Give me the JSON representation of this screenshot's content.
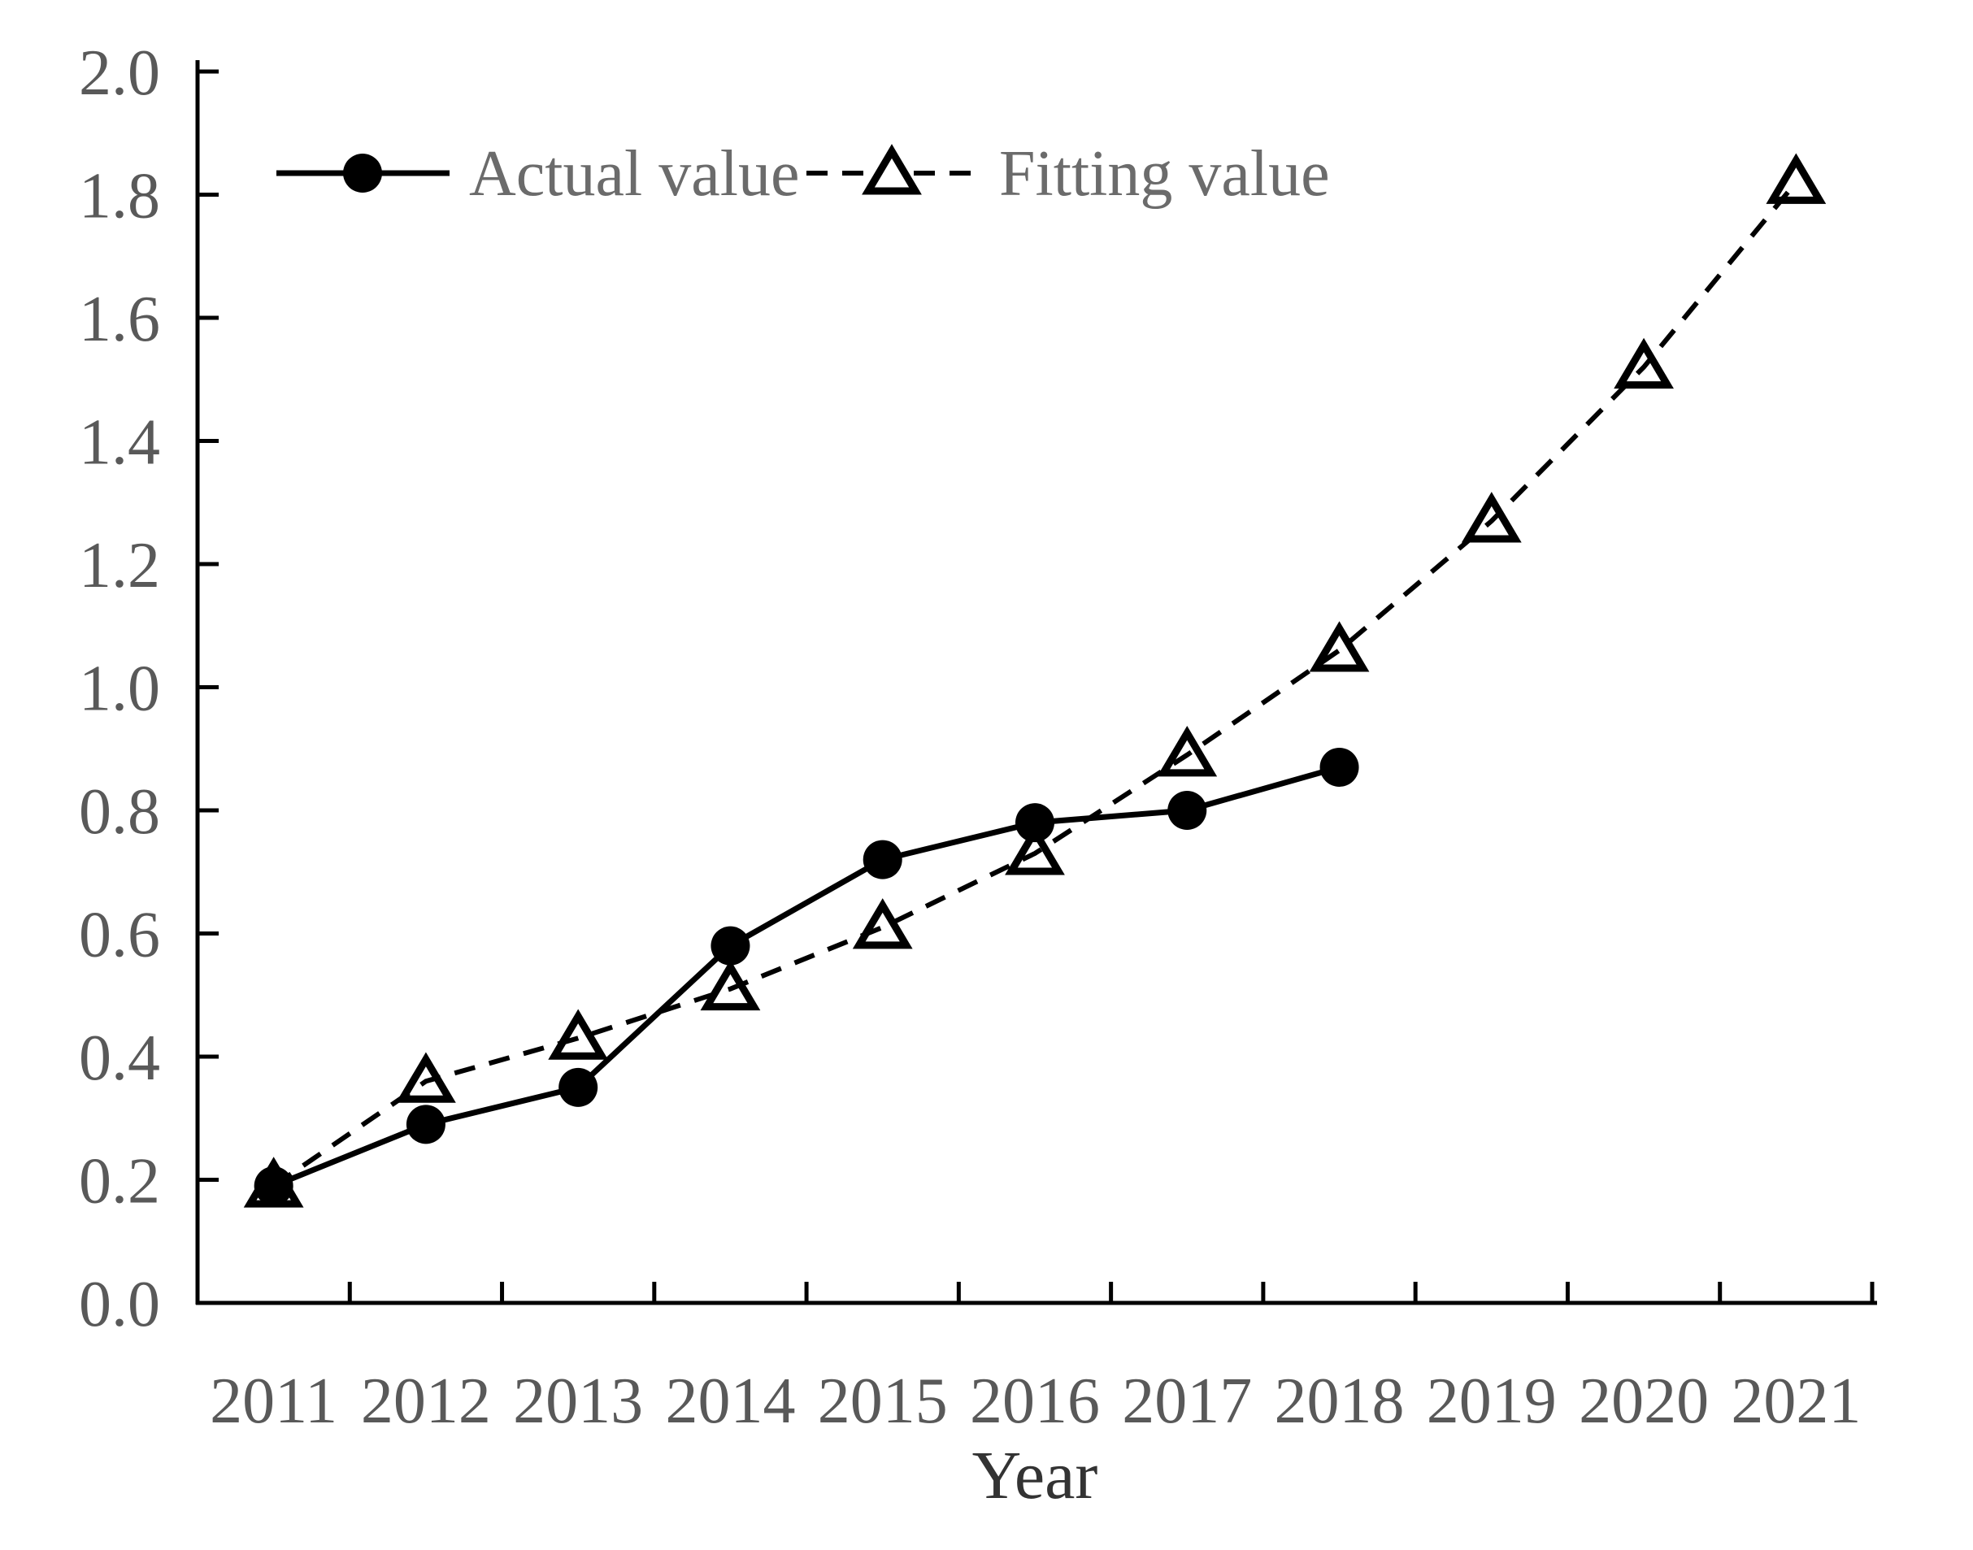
{
  "chart_data": {
    "type": "line",
    "title": "",
    "xlabel": "Year",
    "ylabel": "",
    "categories": [
      "2011",
      "2012",
      "2013",
      "2014",
      "2015",
      "2016",
      "2017",
      "2018",
      "2019",
      "2020",
      "2021"
    ],
    "ylim": [
      0.0,
      2.0
    ],
    "ytick_step": 0.2,
    "ytick_labels": [
      "0.0",
      "0.2",
      "0.4",
      "0.6",
      "0.8",
      "1.0",
      "1.2",
      "1.4",
      "1.6",
      "1.8",
      "2.0"
    ],
    "grid": "off",
    "legend_position": "top-left-inside",
    "axis_color": "#000000",
    "text_color": "#595959",
    "series": [
      {
        "name": "Actual value",
        "marker": "filled-circle",
        "line_style": "solid",
        "color": "#000000",
        "values": [
          0.19,
          0.29,
          0.35,
          0.58,
          0.72,
          0.78,
          0.8,
          0.87,
          null,
          null,
          null
        ]
      },
      {
        "name": "Fitting value",
        "marker": "open-triangle",
        "line_style": "dashed",
        "color": "#000000",
        "values": [
          0.19,
          0.36,
          0.43,
          0.51,
          0.61,
          0.73,
          0.89,
          1.06,
          1.27,
          1.52,
          1.82
        ]
      }
    ]
  }
}
